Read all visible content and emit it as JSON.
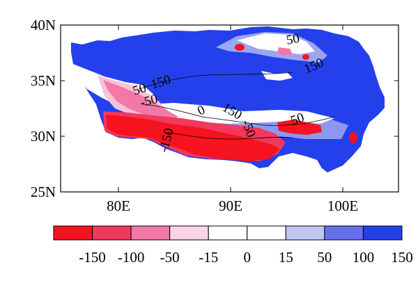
{
  "map": {
    "y_ticks": [
      "40N",
      "35N",
      "30N",
      "25N"
    ],
    "x_ticks": [
      "80E",
      "90E",
      "100E"
    ],
    "contour_labels": [
      "50",
      "150",
      "50",
      "150",
      "-50",
      "-150",
      "0",
      "150",
      "-50",
      "50"
    ]
  },
  "colorbar": {
    "colors": [
      "#f5131f",
      "#f2385c",
      "#f279a6",
      "#fbd4e9",
      "#ffffff",
      "#ffffff",
      "#c0c6f4",
      "#6670ee",
      "#2440ec"
    ],
    "labels": [
      "-150",
      "-100",
      "-50",
      "-15",
      "0",
      "15",
      "50",
      "100",
      "150"
    ]
  }
}
